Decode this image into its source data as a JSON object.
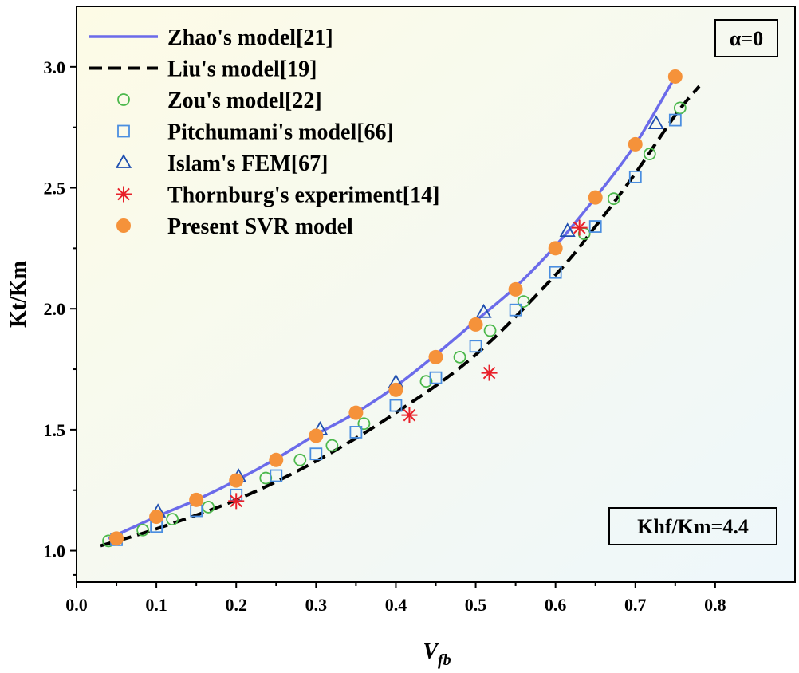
{
  "chart_data": {
    "type": "scatter",
    "xlabel": "V",
    "xlabel_sub": "fb",
    "ylabel": "Kt/Km",
    "xlim": [
      0.0,
      0.9
    ],
    "ylim": [
      0.87,
      3.25
    ],
    "x_ticks": [
      0.0,
      0.1,
      0.2,
      0.3,
      0.4,
      0.5,
      0.6,
      0.7,
      0.8
    ],
    "x_tick_labels": [
      "0.0",
      "0.1",
      "0.2",
      "0.3",
      "0.4",
      "0.5",
      "0.6",
      "0.7",
      "0.8"
    ],
    "y_ticks": [
      1.0,
      1.5,
      2.0,
      2.5,
      3.0
    ],
    "y_tick_labels": [
      "1.0",
      "1.5",
      "2.0",
      "2.5",
      "3.0"
    ],
    "legend_position": "top-left",
    "annotations": {
      "alpha": "α=0",
      "khf": "Khf/Km=4.4"
    },
    "series": [
      {
        "name": "Zhao's model[21]",
        "style": "line-solid",
        "color": "#6b6bea",
        "x": [
          0.04,
          0.1,
          0.15,
          0.2,
          0.25,
          0.3,
          0.35,
          0.4,
          0.45,
          0.5,
          0.55,
          0.6,
          0.65,
          0.7,
          0.75
        ],
        "y": [
          1.05,
          1.14,
          1.21,
          1.29,
          1.38,
          1.48,
          1.57,
          1.68,
          1.81,
          1.95,
          2.09,
          2.26,
          2.46,
          2.68,
          2.96
        ]
      },
      {
        "name": "Liu's model[19]",
        "style": "line-dashed",
        "color": "#000000",
        "x": [
          0.03,
          0.1,
          0.2,
          0.3,
          0.4,
          0.5,
          0.6,
          0.65,
          0.7,
          0.75,
          0.78
        ],
        "y": [
          1.02,
          1.09,
          1.21,
          1.37,
          1.57,
          1.81,
          2.14,
          2.34,
          2.56,
          2.8,
          2.92
        ]
      },
      {
        "name": "Zou's model[22]",
        "style": "marker-circle-open",
        "color": "#4cb84c",
        "x": [
          0.04,
          0.083,
          0.12,
          0.165,
          0.237,
          0.28,
          0.32,
          0.36,
          0.438,
          0.48,
          0.518,
          0.56,
          0.636,
          0.673,
          0.718,
          0.756
        ],
        "y": [
          1.04,
          1.085,
          1.13,
          1.18,
          1.3,
          1.375,
          1.435,
          1.525,
          1.7,
          1.8,
          1.91,
          2.03,
          2.31,
          2.455,
          2.64,
          2.83
        ]
      },
      {
        "name": "Pitchumani's model[66]",
        "style": "marker-square-open",
        "color": "#4a8ee0",
        "x": [
          0.05,
          0.1,
          0.15,
          0.2,
          0.25,
          0.3,
          0.35,
          0.4,
          0.45,
          0.5,
          0.55,
          0.6,
          0.65,
          0.7,
          0.75
        ],
        "y": [
          1.045,
          1.1,
          1.165,
          1.23,
          1.31,
          1.4,
          1.49,
          1.6,
          1.715,
          1.845,
          1.995,
          2.15,
          2.34,
          2.545,
          2.78
        ]
      },
      {
        "name": "Islam's FEM[67]",
        "style": "marker-triangle-open",
        "color": "#1f4fb0",
        "x": [
          0.102,
          0.203,
          0.305,
          0.4,
          0.51,
          0.615,
          0.726
        ],
        "y": [
          1.16,
          1.305,
          1.5,
          1.695,
          1.985,
          2.32,
          2.765
        ]
      },
      {
        "name": "Thornburg's experiment[14]",
        "style": "marker-asterisk",
        "color": "#e8202a",
        "x": [
          0.2,
          0.417,
          0.517,
          0.63
        ],
        "y": [
          1.205,
          1.56,
          1.735,
          2.335
        ]
      },
      {
        "name": "Present SVR model",
        "style": "marker-circle-filled",
        "color": "#f5923a",
        "x": [
          0.05,
          0.1,
          0.15,
          0.2,
          0.25,
          0.3,
          0.35,
          0.4,
          0.45,
          0.5,
          0.55,
          0.6,
          0.65,
          0.7,
          0.75
        ],
        "y": [
          1.05,
          1.14,
          1.21,
          1.29,
          1.375,
          1.475,
          1.57,
          1.665,
          1.8,
          1.935,
          2.08,
          2.25,
          2.46,
          2.68,
          2.96
        ]
      }
    ]
  }
}
